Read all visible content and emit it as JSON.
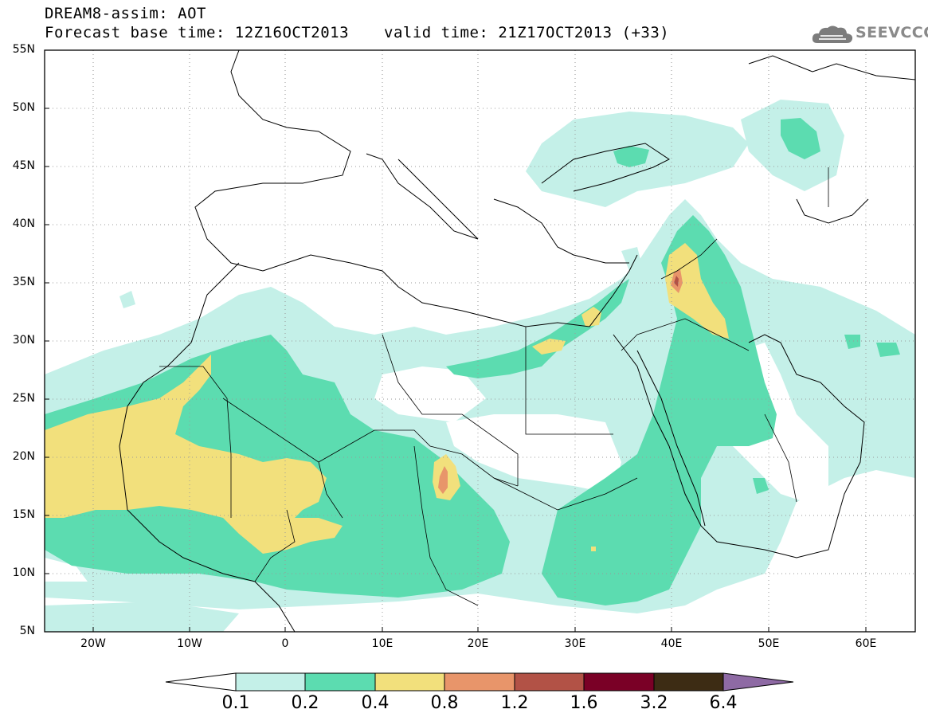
{
  "header": {
    "line1": "DREAM8-assim: AOT",
    "forecast_base": "Forecast base time: 12Z16OCT2013",
    "valid_time": "valid time: 21Z17OCT2013 (+33)",
    "logo_text": "SEEVCCC"
  },
  "map": {
    "lon_range": [
      -25,
      65
    ],
    "lat_range": [
      5,
      55
    ],
    "lat_labels": [
      "55N",
      "50N",
      "45N",
      "40N",
      "35N",
      "30N",
      "25N",
      "20N",
      "15N",
      "10N",
      "5N"
    ],
    "lon_labels": [
      "20W",
      "10W",
      "0",
      "10E",
      "20E",
      "30E",
      "40E",
      "50E",
      "60E"
    ]
  },
  "colorbar": {
    "labels": [
      "0.1",
      "0.2",
      "0.4",
      "0.8",
      "1.2",
      "1.6",
      "3.2",
      "6.4"
    ],
    "colors": [
      "#ffffff",
      "#c4f0e8",
      "#5cdcb0",
      "#f2e07c",
      "#e8956a",
      "#b25246",
      "#7a0026",
      "#3d2c14",
      "#8e6aa4"
    ]
  },
  "legend_colors": {
    "level_0_1": "#c4f0e8",
    "level_0_2": "#5cdcb0",
    "level_0_4": "#f2e07c",
    "level_0_8": "#e8956a",
    "level_1_2": "#b25246"
  }
}
